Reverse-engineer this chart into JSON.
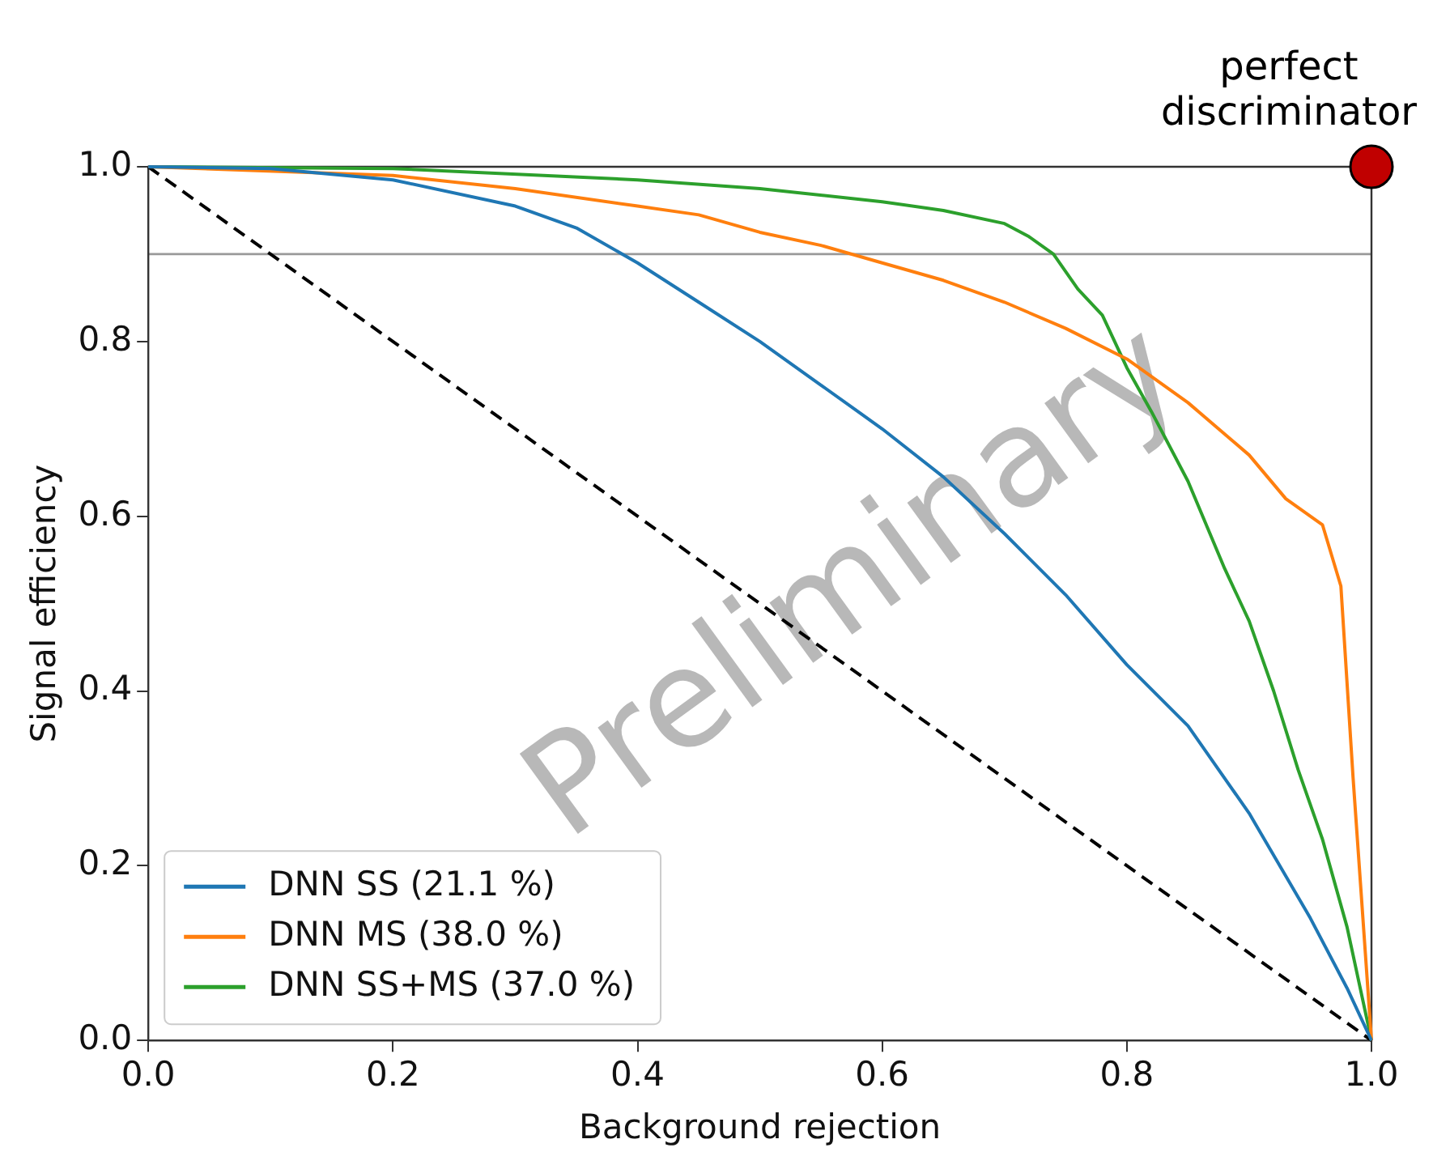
{
  "chart_data": {
    "type": "line",
    "xlabel": "Background rejection",
    "ylabel": "Signal efficiency",
    "xlim": [
      0,
      1
    ],
    "ylim": [
      0,
      1
    ],
    "xticks": [
      {
        "value": 0,
        "label": "0.0"
      },
      {
        "value": 0.2,
        "label": "0.2"
      },
      {
        "value": 0.4,
        "label": "0.4"
      },
      {
        "value": 0.6,
        "label": "0.6"
      },
      {
        "value": 0.8,
        "label": "0.8"
      },
      {
        "value": 1,
        "label": "1.0"
      }
    ],
    "yticks": [
      {
        "value": 0,
        "label": "0.0"
      },
      {
        "value": 0.2,
        "label": "0.2"
      },
      {
        "value": 0.4,
        "label": "0.4"
      },
      {
        "value": 0.6,
        "label": "0.6"
      },
      {
        "value": 0.8,
        "label": "0.8"
      },
      {
        "value": 1,
        "label": "1.0"
      }
    ],
    "grid": false,
    "legend": "bottom left",
    "marker": "none",
    "ref_lines": [
      {
        "axis": "y",
        "value": 0.9,
        "color": "#999999"
      }
    ],
    "annotations": [
      {
        "text": "perfect discriminator",
        "x": 1,
        "y": 1
      },
      "Preliminary"
    ],
    "series": [
      {
        "name": "DNN SS (21.1 %)",
        "color": "#1f77b4",
        "x": [
          0,
          0.1,
          0.2,
          0.3,
          0.35,
          0.4,
          0.45,
          0.5,
          0.55,
          0.6,
          0.65,
          0.7,
          0.75,
          0.8,
          0.85,
          0.9,
          0.95,
          0.98,
          1
        ],
        "values": [
          1,
          0.998,
          0.985,
          0.955,
          0.93,
          0.89,
          0.845,
          0.8,
          0.75,
          0.7,
          0.645,
          0.58,
          0.51,
          0.43,
          0.36,
          0.26,
          0.14,
          0.06,
          0
        ]
      },
      {
        "name": "DNN MS (38.0 %)",
        "color": "#ff7f0e",
        "x": [
          0,
          0.2,
          0.3,
          0.4,
          0.45,
          0.5,
          0.55,
          0.6,
          0.65,
          0.7,
          0.75,
          0.8,
          0.85,
          0.9,
          0.93,
          0.96,
          0.975,
          0.985,
          0.995,
          1
        ],
        "values": [
          1,
          0.99,
          0.975,
          0.955,
          0.945,
          0.925,
          0.91,
          0.89,
          0.87,
          0.845,
          0.815,
          0.78,
          0.73,
          0.67,
          0.62,
          0.59,
          0.52,
          0.3,
          0.1,
          0
        ]
      },
      {
        "name": "DNN SS+MS (37.0 %)",
        "color": "#2ca02c",
        "x": [
          0,
          0.2,
          0.4,
          0.5,
          0.6,
          0.65,
          0.7,
          0.72,
          0.74,
          0.76,
          0.78,
          0.8,
          0.82,
          0.85,
          0.88,
          0.9,
          0.92,
          0.94,
          0.96,
          0.98,
          1
        ],
        "values": [
          1,
          0.998,
          0.985,
          0.975,
          0.96,
          0.95,
          0.935,
          0.92,
          0.9,
          0.86,
          0.83,
          0.77,
          0.72,
          0.64,
          0.54,
          0.48,
          0.4,
          0.31,
          0.23,
          0.13,
          0
        ]
      },
      {
        "color": "#000000",
        "line_style": "dashed",
        "x": [
          0,
          1
        ],
        "values": [
          1,
          0
        ]
      },
      {
        "type": "scatter",
        "color": "#c00000",
        "marker": "circle",
        "x": [
          1
        ],
        "values": [
          1
        ]
      }
    ]
  }
}
